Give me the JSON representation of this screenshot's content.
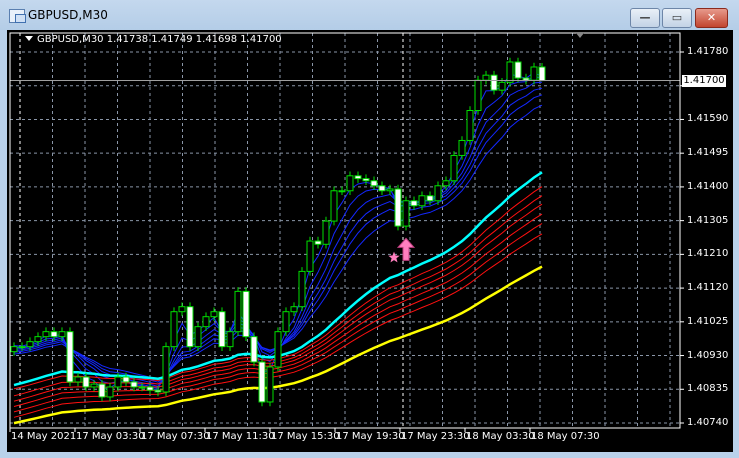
{
  "window": {
    "title": "GBPUSD,M30",
    "buttons": {
      "minimize": "—",
      "maximize": "▭",
      "close": "✕"
    }
  },
  "chart_data": {
    "type": "candlestick",
    "symbol": "GBPUSD",
    "timeframe": "M30",
    "info_line": "GBPUSD,M30  1.41738 1.41749 1.41698 1.41700",
    "last_ohlc": {
      "open": 1.41738,
      "high": 1.41749,
      "low": 1.41698,
      "close": 1.417
    },
    "current_price_label": "1.41700",
    "y_range": [
      1.4074,
      1.4178
    ],
    "y_ticks": [
      "1.41780",
      "1.41685",
      "1.41590",
      "1.41495",
      "1.41400",
      "1.41305",
      "1.41210",
      "1.41120",
      "1.41025",
      "1.40930",
      "1.40835",
      "1.40740"
    ],
    "x_ticks": [
      "14 May 2021",
      "17 May 03:30",
      "17 May 07:30",
      "17 May 11:30",
      "17 May 15:30",
      "17 May 19:30",
      "17 May 23:30",
      "18 May 03:30",
      "18 May 07:30"
    ],
    "grid": true,
    "close": [
      1.40954,
      1.40954,
      1.40968,
      1.40982,
      1.40996,
      1.40982,
      1.40996,
      1.40855,
      1.40869,
      1.40841,
      1.40849,
      1.40813,
      1.40841,
      1.40869,
      1.40855,
      1.40841,
      1.40841,
      1.40832,
      1.40827,
      1.40954,
      1.41052,
      1.41066,
      1.40954,
      1.4101,
      1.41038,
      1.41052,
      1.40954,
      1.40996,
      1.41109,
      1.40982,
      1.40911,
      1.40799,
      1.40897,
      1.40996,
      1.41052,
      1.41066,
      1.41165,
      1.4125,
      1.41241,
      1.41306,
      1.41391,
      1.41391,
      1.41433,
      1.41425,
      1.41419,
      1.41405,
      1.41391,
      1.41396,
      1.41292,
      1.41363,
      1.41349,
      1.41377,
      1.41363,
      1.41405,
      1.41419,
      1.4149,
      1.41532,
      1.41616,
      1.41701,
      1.41715,
      1.41673,
      1.41695,
      1.41752,
      1.41707,
      1.41701,
      1.41738,
      1.417
    ],
    "colors": {
      "background": "#000000",
      "grid": "#8a96a8",
      "candle_outline": "#00e000",
      "bear_body": "#ffffff",
      "bull_body": "#000000",
      "fast_ma": "#1428ff",
      "mid_ma": "#00ffff",
      "slow_ma": "#ff1010",
      "slowest_ma": "#ffff00",
      "signal": "#ff7fbf"
    },
    "signals": [
      {
        "type": "buy-arrow",
        "bar": 49
      },
      {
        "type": "star",
        "bar": 48
      }
    ]
  }
}
